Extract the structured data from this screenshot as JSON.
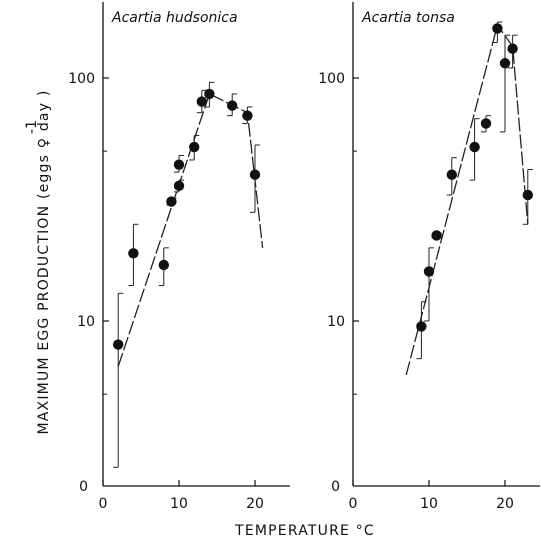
{
  "figure": {
    "xlabel": "TEMPERATURE °C",
    "ylabel": "MAXIMUM EGG PRODUCTION (eggs ♀ day )",
    "ylabel_superscript": "-1",
    "y_zero_label": "0"
  },
  "chart_data": [
    {
      "type": "scatter",
      "title": "Acartia hudsonica",
      "xlabel": "TEMPERATURE °C",
      "ylabel": "MAXIMUM EGG PRODUCTION (eggs ♀-1 day-1)",
      "y_scale": "log",
      "xlim": [
        0,
        25
      ],
      "ylim": [
        1,
        200
      ],
      "x_ticks": [
        0,
        10,
        20
      ],
      "y_ticks": [
        10,
        100
      ],
      "grid": false,
      "points": [
        {
          "x": 2,
          "y": 8,
          "err_low": 2.5,
          "err_high": 13
        },
        {
          "x": 4,
          "y": 19,
          "err_low": 14,
          "err_high": 25
        },
        {
          "x": 8,
          "y": 17,
          "err_low": 14,
          "err_high": 20
        },
        {
          "x": 9,
          "y": 31,
          "err_low": 30,
          "err_high": 32
        },
        {
          "x": 10,
          "y": 44,
          "err_low": 41,
          "err_high": 48
        },
        {
          "x": 10,
          "y": 36,
          "err_low": 34,
          "err_high": 38
        },
        {
          "x": 12,
          "y": 52,
          "err_low": 46,
          "err_high": 58
        },
        {
          "x": 13,
          "y": 80,
          "err_low": 72,
          "err_high": 89
        },
        {
          "x": 14,
          "y": 86,
          "err_low": 76,
          "err_high": 96
        },
        {
          "x": 17,
          "y": 77,
          "err_low": 70,
          "err_high": 86
        },
        {
          "x": 19,
          "y": 70,
          "err_low": 65,
          "err_high": 76
        },
        {
          "x": 20,
          "y": 40,
          "err_low": 28,
          "err_high": 53
        }
      ],
      "fit_line": {
        "x": [
          2,
          14,
          19,
          21
        ],
        "y": [
          6.5,
          86,
          72,
          20
        ]
      }
    },
    {
      "type": "scatter",
      "title": "Acartia tonsa",
      "xlabel": "TEMPERATURE °C",
      "ylabel": "MAXIMUM EGG PRODUCTION (eggs ♀-1 day-1)",
      "y_scale": "log",
      "xlim": [
        0,
        25
      ],
      "ylim": [
        1,
        200
      ],
      "x_ticks": [
        0,
        10,
        20
      ],
      "y_ticks": [
        10,
        100
      ],
      "grid": false,
      "points": [
        {
          "x": 9,
          "y": 9.5,
          "err_low": 7,
          "err_high": 12
        },
        {
          "x": 10,
          "y": 16,
          "err_low": 10,
          "err_high": 20
        },
        {
          "x": 11,
          "y": 22.5,
          "err_low": 22,
          "err_high": 23
        },
        {
          "x": 13,
          "y": 40,
          "err_low": 33,
          "err_high": 47
        },
        {
          "x": 16,
          "y": 52,
          "err_low": 38,
          "err_high": 68
        },
        {
          "x": 17.5,
          "y": 65,
          "err_low": 60,
          "err_high": 70
        },
        {
          "x": 19,
          "y": 160,
          "err_low": 140,
          "err_high": 170
        },
        {
          "x": 20,
          "y": 115,
          "err_low": 60,
          "err_high": 150
        },
        {
          "x": 21,
          "y": 132,
          "err_low": 110,
          "err_high": 150
        },
        {
          "x": 23,
          "y": 33,
          "err_low": 25,
          "err_high": 42
        }
      ],
      "fit_line": {
        "x": [
          7,
          19,
          21,
          23
        ],
        "y": [
          6,
          165,
          135,
          25
        ]
      }
    }
  ]
}
